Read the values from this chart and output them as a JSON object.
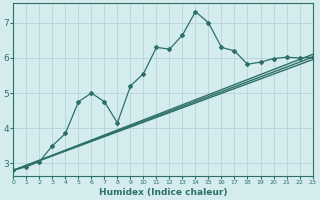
{
  "xlabel": "Humidex (Indice chaleur)",
  "bg_color": "#d4ecee",
  "grid_color": "#b8d4d8",
  "line_color": "#2d7068",
  "xlim": [
    0,
    23
  ],
  "ylim": [
    2.65,
    7.55
  ],
  "yticks": [
    3,
    4,
    5,
    6,
    7
  ],
  "xticks": [
    0,
    1,
    2,
    3,
    4,
    5,
    6,
    7,
    8,
    9,
    10,
    11,
    12,
    13,
    14,
    15,
    16,
    17,
    18,
    19,
    20,
    21,
    22,
    23
  ],
  "curve_x": [
    0,
    1,
    2,
    3,
    4,
    5,
    6,
    7,
    8,
    9,
    10,
    11,
    12,
    13,
    14,
    15,
    16,
    17,
    18,
    19,
    20,
    21,
    22,
    23
  ],
  "curve_y": [
    2.8,
    2.9,
    3.05,
    3.5,
    3.85,
    4.75,
    5.0,
    4.75,
    4.15,
    5.2,
    5.55,
    6.3,
    6.25,
    6.65,
    7.32,
    7.0,
    6.3,
    6.2,
    5.82,
    5.88,
    5.98,
    6.02,
    6.0,
    6.02
  ],
  "trend1_x": [
    0,
    23
  ],
  "trend1_y": [
    2.8,
    6.02
  ],
  "trend2_x": [
    0,
    23
  ],
  "trend2_y": [
    2.8,
    6.1
  ],
  "trend3_x": [
    0,
    23
  ],
  "trend3_y": [
    2.8,
    5.95
  ]
}
